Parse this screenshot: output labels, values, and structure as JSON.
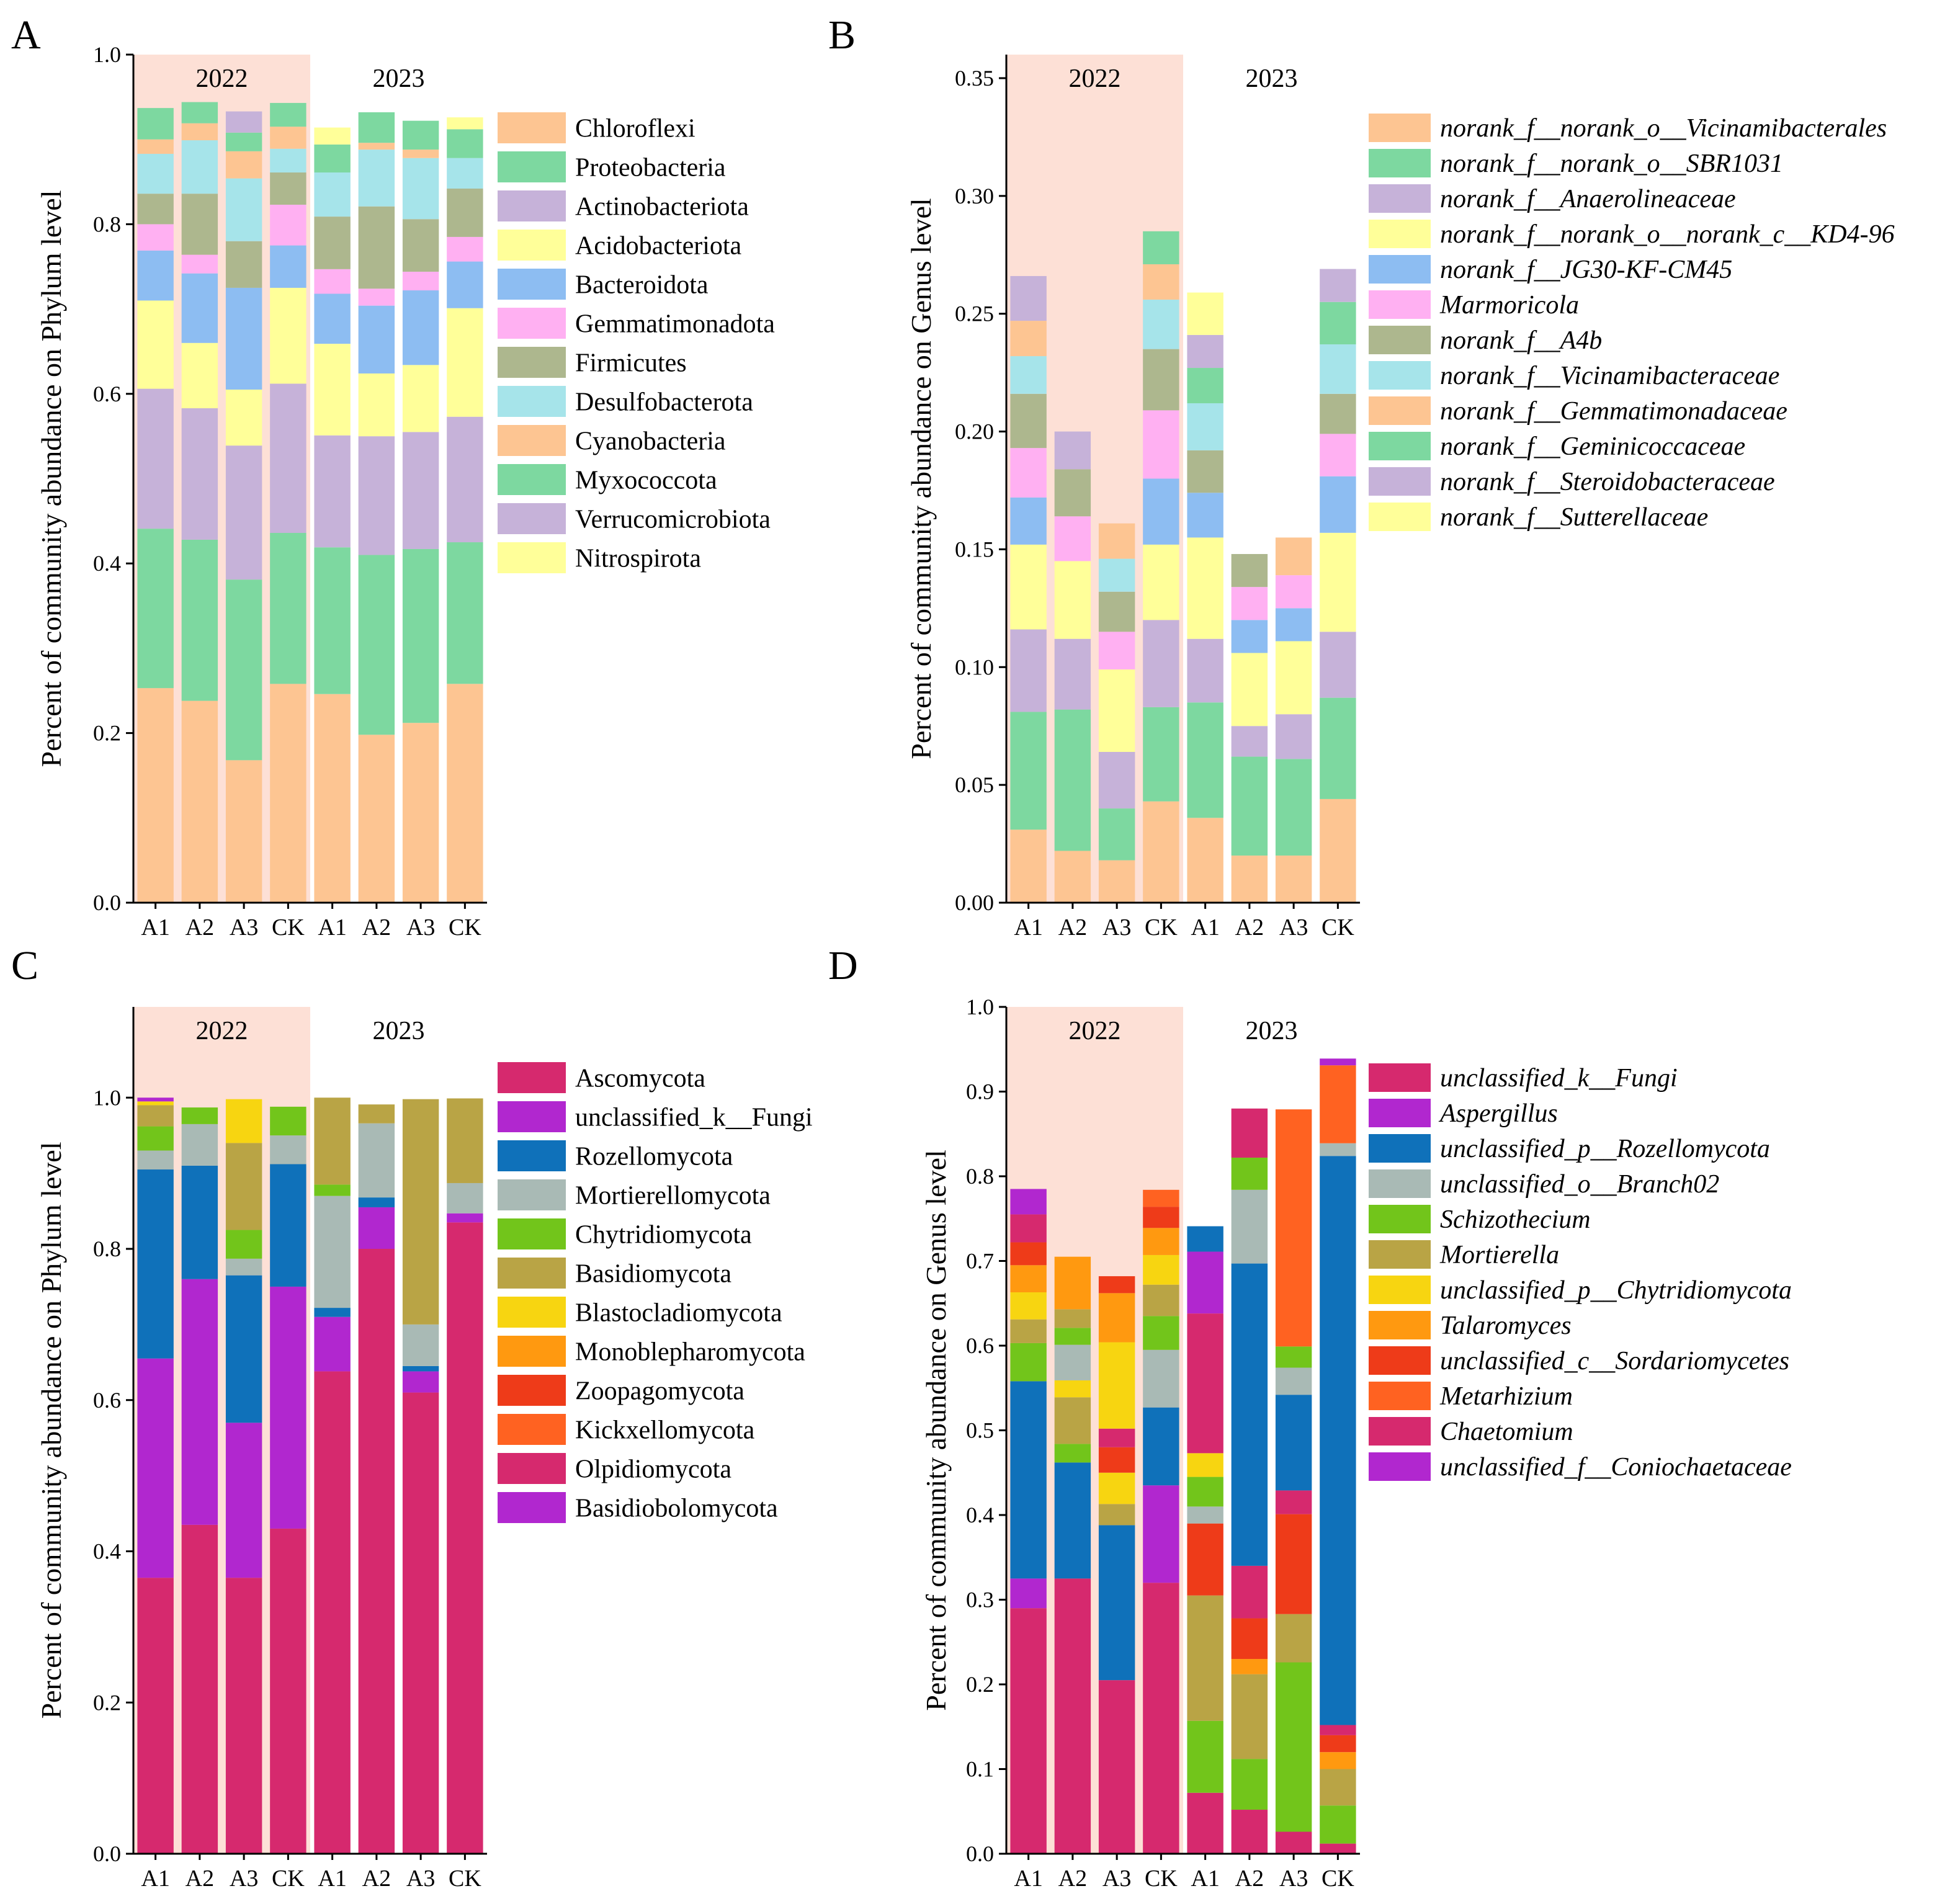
{
  "chart_data": [
    {
      "type": "bar",
      "panel": "A",
      "ylabel": "Percent of community abundance on Phylum level",
      "ylim": [
        0,
        1.0
      ],
      "yticks": [
        0.0,
        0.2,
        0.4,
        0.6,
        0.8,
        1.0
      ],
      "tick_decimals": 1,
      "categories": [
        "A1",
        "A2",
        "A3",
        "CK",
        "A1",
        "A2",
        "A3",
        "CK"
      ],
      "groups": [
        {
          "label": "2022",
          "start": 0,
          "end": 3,
          "shaded": true
        },
        {
          "label": "2023",
          "start": 4,
          "end": 7,
          "shaded": false
        }
      ],
      "legend_italic": false,
      "series": [
        {
          "name": "Chloroflexi",
          "color": "#FDC592",
          "values": [
            0.253,
            0.238,
            0.168,
            0.258,
            0.246,
            0.198,
            0.212,
            0.258
          ]
        },
        {
          "name": "Proteobacteria",
          "color": "#7DD8A0",
          "values": [
            0.188,
            0.19,
            0.213,
            0.178,
            0.173,
            0.212,
            0.205,
            0.167
          ]
        },
        {
          "name": "Actinobacteriota",
          "color": "#C6B2D9",
          "values": [
            0.165,
            0.155,
            0.158,
            0.176,
            0.132,
            0.14,
            0.138,
            0.148
          ]
        },
        {
          "name": "Acidobacteriota",
          "color": "#FFFF99",
          "values": [
            0.104,
            0.077,
            0.066,
            0.113,
            0.108,
            0.074,
            0.079,
            0.128
          ]
        },
        {
          "name": "Bacteroidota",
          "color": "#8DBDF2",
          "values": [
            0.059,
            0.082,
            0.12,
            0.05,
            0.059,
            0.08,
            0.088,
            0.055
          ]
        },
        {
          "name": "Gemmatimonadota",
          "color": "#FFB0F2",
          "values": [
            0.031,
            0.022,
            0.0,
            0.048,
            0.029,
            0.02,
            0.022,
            0.029
          ]
        },
        {
          "name": "Firmicutes",
          "color": "#ADB78E",
          "values": [
            0.036,
            0.072,
            0.055,
            0.038,
            0.062,
            0.097,
            0.062,
            0.057
          ]
        },
        {
          "name": "Desulfobacterota",
          "color": "#A6E4EA",
          "values": [
            0.047,
            0.063,
            0.074,
            0.028,
            0.052,
            0.067,
            0.072,
            0.036
          ]
        },
        {
          "name": "Cyanobacteria",
          "color": "#FDC592",
          "values": [
            0.017,
            0.02,
            0.032,
            0.026,
            0.0,
            0.008,
            0.01,
            0.0
          ]
        },
        {
          "name": "Myxococcota",
          "color": "#7DD8A0",
          "values": [
            0.037,
            0.025,
            0.022,
            0.028,
            0.033,
            0.036,
            0.034,
            0.034
          ]
        },
        {
          "name": "Verrucomicrobiota",
          "color": "#C6B2D9",
          "values": [
            0.0,
            0.0,
            0.025,
            0.0,
            0.0,
            0.0,
            0.0,
            0.0
          ]
        },
        {
          "name": "Nitrospirota",
          "color": "#FFFF99",
          "values": [
            0.0,
            0.0,
            0.0,
            0.0,
            0.02,
            0.0,
            0.0,
            0.014
          ]
        }
      ]
    },
    {
      "type": "bar",
      "panel": "B",
      "ylabel": "Percent of community abundance on Genus level",
      "ylim": [
        0,
        0.36
      ],
      "yticks": [
        0.0,
        0.05,
        0.1,
        0.15,
        0.2,
        0.25,
        0.3,
        0.35
      ],
      "tick_decimals": 2,
      "categories": [
        "A1",
        "A2",
        "A3",
        "CK",
        "A1",
        "A2",
        "A3",
        "CK"
      ],
      "groups": [
        {
          "label": "2022",
          "start": 0,
          "end": 3,
          "shaded": true
        },
        {
          "label": "2023",
          "start": 4,
          "end": 7,
          "shaded": false
        }
      ],
      "legend_italic": true,
      "series": [
        {
          "name": "norank_f__norank_o__Vicinamibacterales",
          "color": "#FDC592",
          "values": [
            0.031,
            0.022,
            0.018,
            0.043,
            0.036,
            0.02,
            0.02,
            0.044
          ]
        },
        {
          "name": "norank_f__norank_o__SBR1031",
          "color": "#7DD8A0",
          "values": [
            0.05,
            0.06,
            0.022,
            0.04,
            0.049,
            0.042,
            0.041,
            0.043
          ]
        },
        {
          "name": "norank_f__Anaerolineaceae",
          "color": "#C6B2D9",
          "values": [
            0.035,
            0.03,
            0.024,
            0.037,
            0.027,
            0.013,
            0.019,
            0.028
          ]
        },
        {
          "name": "norank_f__norank_o__norank_c__KD4-96",
          "color": "#FFFF99",
          "values": [
            0.036,
            0.033,
            0.035,
            0.032,
            0.043,
            0.031,
            0.031,
            0.042
          ]
        },
        {
          "name": "norank_f__JG30-KF-CM45",
          "color": "#8DBDF2",
          "values": [
            0.02,
            0.0,
            0.0,
            0.028,
            0.019,
            0.014,
            0.014,
            0.024
          ]
        },
        {
          "name": "Marmoricola",
          "color": "#FFB0F2",
          "values": [
            0.021,
            0.019,
            0.016,
            0.029,
            0.0,
            0.014,
            0.014,
            0.018
          ]
        },
        {
          "name": "norank_f__A4b",
          "color": "#ADB78E",
          "values": [
            0.023,
            0.02,
            0.017,
            0.026,
            0.018,
            0.014,
            0.0,
            0.017
          ]
        },
        {
          "name": "norank_f__Vicinamibacteraceae",
          "color": "#A6E4EA",
          "values": [
            0.016,
            0.0,
            0.014,
            0.021,
            0.02,
            0.0,
            0.0,
            0.021
          ]
        },
        {
          "name": "norank_f__Gemmatimonadaceae",
          "color": "#FDC592",
          "values": [
            0.015,
            0.0,
            0.015,
            0.015,
            0.0,
            0.0,
            0.016,
            0.0
          ]
        },
        {
          "name": "norank_f__Geminicoccaceae",
          "color": "#7DD8A0",
          "values": [
            0.0,
            0.0,
            0.0,
            0.014,
            0.015,
            0.0,
            0.0,
            0.018
          ]
        },
        {
          "name": "norank_f__Steroidobacteraceae",
          "color": "#C6B2D9",
          "values": [
            0.019,
            0.016,
            0.0,
            0.0,
            0.014,
            0.0,
            0.0,
            0.014
          ]
        },
        {
          "name": "norank_f__Sutterellaceae",
          "color": "#FFFF99",
          "values": [
            0.0,
            0.0,
            0.0,
            0.0,
            0.018,
            0.0,
            0.0,
            0.0
          ]
        }
      ]
    },
    {
      "type": "bar",
      "panel": "C",
      "ylabel": "Percent of community abundance on Phylum level",
      "ylim": [
        0,
        1.12
      ],
      "yticks": [
        0.0,
        0.2,
        0.4,
        0.6,
        0.8,
        1.0
      ],
      "tick_decimals": 1,
      "categories": [
        "A1",
        "A2",
        "A3",
        "CK",
        "A1",
        "A2",
        "A3",
        "CK"
      ],
      "groups": [
        {
          "label": "2022",
          "start": 0,
          "end": 3,
          "shaded": true
        },
        {
          "label": "2023",
          "start": 4,
          "end": 7,
          "shaded": false
        }
      ],
      "legend_italic": false,
      "series": [
        {
          "name": "Ascomycota",
          "color": "#D6296E",
          "values": [
            0.365,
            0.435,
            0.365,
            0.43,
            0.638,
            0.8,
            0.61,
            0.835
          ]
        },
        {
          "name": "unclassified_k__Fungi",
          "color": "#B127CF",
          "values": [
            0.29,
            0.325,
            0.205,
            0.32,
            0.072,
            0.055,
            0.028,
            0.012
          ]
        },
        {
          "name": "Rozellomycota",
          "color": "#0F71BA",
          "values": [
            0.25,
            0.15,
            0.195,
            0.162,
            0.012,
            0.013,
            0.007,
            0.0
          ]
        },
        {
          "name": "Mortierellomycota",
          "color": "#A9BAB5",
          "values": [
            0.025,
            0.055,
            0.022,
            0.038,
            0.148,
            0.098,
            0.055,
            0.04
          ]
        },
        {
          "name": "Chytridiomycota",
          "color": "#72C51B",
          "values": [
            0.032,
            0.022,
            0.038,
            0.038,
            0.015,
            0.0,
            0.0,
            0.0
          ]
        },
        {
          "name": "Basidiomycota",
          "color": "#B9A445",
          "values": [
            0.028,
            0.0,
            0.115,
            0.0,
            0.115,
            0.025,
            0.298,
            0.112
          ]
        },
        {
          "name": "Blastocladiomycota",
          "color": "#F7D511",
          "values": [
            0.005,
            0.0,
            0.058,
            0.0,
            0.0,
            0.0,
            0.0,
            0.0
          ]
        },
        {
          "name": "Monoblepharomycota",
          "color": "#FF9910",
          "values": [
            0.0,
            0.0,
            0.0,
            0.0,
            0.0,
            0.0,
            0.0,
            0.0
          ]
        },
        {
          "name": "Zoopagomycota",
          "color": "#EE3B19",
          "values": [
            0.0,
            0.0,
            0.0,
            0.0,
            0.0,
            0.0,
            0.0,
            0.0
          ]
        },
        {
          "name": "Kickxellomycota",
          "color": "#FF6221",
          "values": [
            0.0,
            0.0,
            0.0,
            0.0,
            0.0,
            0.0,
            0.0,
            0.0
          ]
        },
        {
          "name": "Olpidiomycota",
          "color": "#D6296E",
          "values": [
            0.0,
            0.0,
            0.0,
            0.0,
            0.0,
            0.0,
            0.0,
            0.0
          ]
        },
        {
          "name": "Basidiobolomycota",
          "color": "#B127CF",
          "values": [
            0.005,
            0.0,
            0.0,
            0.0,
            0.0,
            0.0,
            0.0,
            0.0
          ]
        }
      ]
    },
    {
      "type": "bar",
      "panel": "D",
      "ylabel": "Percent of community abundance on Genus level",
      "ylim": [
        0,
        1.0
      ],
      "yticks": [
        0.0,
        0.1,
        0.2,
        0.3,
        0.4,
        0.5,
        0.6,
        0.7,
        0.8,
        0.9,
        1.0
      ],
      "tick_decimals": 1,
      "categories": [
        "A1",
        "A2",
        "A3",
        "CK",
        "A1",
        "A2",
        "A3",
        "CK"
      ],
      "groups": [
        {
          "label": "2022",
          "start": 0,
          "end": 3,
          "shaded": true
        },
        {
          "label": "2023",
          "start": 4,
          "end": 7,
          "shaded": false
        }
      ],
      "legend_italic": true,
      "series": [
        {
          "name": "unclassified_k__Fungi",
          "color": "#D6296E",
          "values": [
            0.29,
            0.325,
            0.205,
            0.32,
            0.072,
            0.052,
            0.026,
            0.012
          ]
        },
        {
          "name": "Aspergillus",
          "color": "#B127CF",
          "values": [
            0.035,
            0.0,
            0.0,
            0.115,
            0.0,
            0.0,
            0.0,
            0.0
          ]
        },
        {
          "name": "unclassified_p__Rozellomycota",
          "color": "#0F71BA",
          "values": [
            0.233,
            0.137,
            0.183,
            0.092,
            0.0,
            0.0,
            0.0,
            0.0
          ]
        },
        {
          "name": "unclassified_o__Branch02",
          "color": "#A9BAB5",
          "values": [
            0.0,
            0.0,
            0.0,
            0.0,
            0.0,
            0.0,
            0.0,
            0.0
          ]
        },
        {
          "name": "Schizothecium",
          "color": "#72C51B",
          "values": [
            0.0,
            0.022,
            0.0,
            0.0,
            0.085,
            0.06,
            0.2,
            0.045
          ]
        },
        {
          "name": "Mortierella",
          "color": "#B9A445",
          "values": [
            0.0,
            0.055,
            0.025,
            0.0,
            0.148,
            0.1,
            0.057,
            0.043
          ]
        },
        {
          "name": "unclassified_p__Chytridiomycota",
          "color": "#F7D511",
          "values": [
            0.0,
            0.02,
            0.037,
            0.0,
            0.0,
            0.0,
            0.0,
            0.0
          ]
        },
        {
          "name": "Talaromyces",
          "color": "#FF9910",
          "values": [
            0.0,
            0.0,
            0.0,
            0.0,
            0.0,
            0.018,
            0.0,
            0.02
          ]
        },
        {
          "name": "unclassified_c__Sordariomycetes",
          "color": "#EE3B19",
          "values": [
            0.0,
            0.0,
            0.03,
            0.0,
            0.085,
            0.048,
            0.118,
            0.02
          ]
        },
        {
          "name": "Metarhizium",
          "color": "#FF6221",
          "values": [
            0.0,
            0.0,
            0.0,
            0.0,
            0.0,
            0.0,
            0.0,
            0.0
          ]
        },
        {
          "name": "Chaetomium",
          "color": "#D6296E",
          "values": [
            0.0,
            0.0,
            0.022,
            0.0,
            0.0,
            0.062,
            0.028,
            0.012
          ]
        },
        {
          "name": "unclassified_f__Coniochaetaceae",
          "color": "#B127CF",
          "values": [
            0.0,
            0.0,
            0.0,
            0.0,
            0.0,
            0.0,
            0.0,
            0.0
          ]
        }
      ],
      "extra_segments": [
        {
          "name": "unclassified_p__Rozellomycota",
          "color": "#0F71BA",
          "values": [
            0.0,
            0.0,
            0.0,
            0.0,
            0.0,
            0.357,
            0.113,
            0.672
          ]
        },
        {
          "name": "unclassified_o__Branch02",
          "color": "#A9BAB5",
          "values": [
            0.0,
            0.042,
            0.0,
            0.068,
            0.02,
            0.087,
            0.032,
            0.015
          ]
        },
        {
          "name": "Schizothecium",
          "color": "#72C51B",
          "values": [
            0.045,
            0.02,
            0.0,
            0.04,
            0.035,
            0.038,
            0.025,
            0.0
          ]
        },
        {
          "name": "Mortierella",
          "color": "#B9A445",
          "values": [
            0.028,
            0.022,
            0.0,
            0.037,
            0.0,
            0.0,
            0.0,
            0.0
          ]
        },
        {
          "name": "unclassified_p__Chytridiomycota",
          "color": "#F7D511",
          "values": [
            0.032,
            0.0,
            0.102,
            0.035,
            0.028,
            0.0,
            0.0,
            0.0
          ]
        },
        {
          "name": "Talaromyces",
          "color": "#FF9910",
          "values": [
            0.032,
            0.062,
            0.058,
            0.032,
            0.0,
            0.0,
            0.0,
            0.0
          ]
        },
        {
          "name": "unclassified_c__Sordariomycetes",
          "color": "#EE3B19",
          "values": [
            0.027,
            0.0,
            0.02,
            0.025,
            0.0,
            0.0,
            0.0,
            0.0
          ]
        },
        {
          "name": "Metarhizium",
          "color": "#FF6221",
          "values": [
            0.0,
            0.0,
            0.0,
            0.02,
            0.0,
            0.0,
            0.28,
            0.092
          ]
        },
        {
          "name": "Chaetomium",
          "color": "#D6296E",
          "values": [
            0.033,
            0.0,
            0.0,
            0.0,
            0.165,
            0.058,
            0.0,
            0.0
          ]
        },
        {
          "name": "unclassified_f__Coniochaetaceae",
          "color": "#B127CF",
          "values": [
            0.03,
            0.0,
            0.0,
            0.0,
            0.073,
            0.0,
            0.0,
            0.008
          ]
        },
        {
          "name": "unclassified_p__Rozellomycota",
          "color": "#0F71BA",
          "values": [
            0.0,
            0.0,
            0.0,
            0.0,
            0.03,
            0.0,
            0.0,
            0.0
          ]
        }
      ]
    }
  ]
}
